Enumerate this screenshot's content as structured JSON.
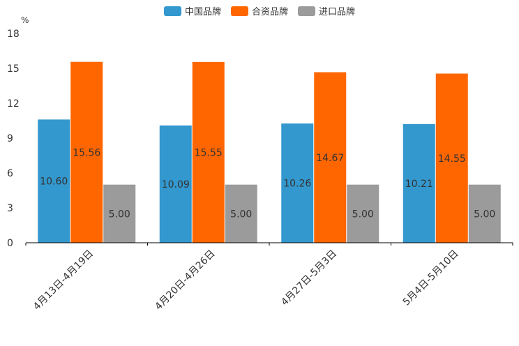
{
  "chart_data": {
    "type": "bar",
    "ylabel": "%",
    "ylim": [
      0,
      18
    ],
    "yticks": [
      0,
      3,
      6,
      9,
      12,
      15,
      18
    ],
    "categories": [
      "4月13日-4月19日",
      "4月20日-4月26日",
      "4月27日-5月3日",
      "5月4日-5月10日"
    ],
    "series": [
      {
        "name": "中国品牌",
        "color": "#3398CE",
        "values": [
          10.6,
          10.09,
          10.26,
          10.21
        ],
        "labels": [
          "10.60",
          "10.09",
          "10.26",
          "10.21"
        ]
      },
      {
        "name": "合资品牌",
        "color": "#FF6600",
        "values": [
          15.56,
          15.55,
          14.67,
          14.55
        ],
        "labels": [
          "15.56",
          "15.55",
          "14.67",
          "14.55"
        ]
      },
      {
        "name": "进口品牌",
        "color": "#9B9B9B",
        "values": [
          5.0,
          5.0,
          5.0,
          5.0
        ],
        "labels": [
          "5.00",
          "5.00",
          "5.00",
          "5.00"
        ]
      }
    ]
  }
}
